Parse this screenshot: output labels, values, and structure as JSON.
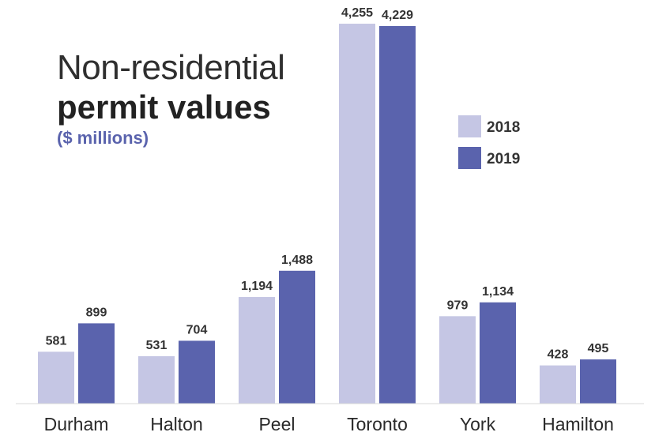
{
  "chart_data": {
    "type": "bar",
    "title_line1": "Non-residential",
    "title_line2": "permit values",
    "subtitle": "($ millions)",
    "categories": [
      "Durham",
      "Halton",
      "Peel",
      "Toronto",
      "York",
      "Hamilton"
    ],
    "series": [
      {
        "name": "2018",
        "color": "#c5c6e4",
        "values": [
          581,
          531,
          1194,
          4255,
          979,
          428
        ],
        "labels": [
          "581",
          "531",
          "1,194",
          "4,255",
          "979",
          "428"
        ]
      },
      {
        "name": "2019",
        "color": "#5a63ad",
        "values": [
          899,
          704,
          1488,
          4229,
          1134,
          495
        ],
        "labels": [
          "899",
          "704",
          "1,488",
          "4,229",
          "1,134",
          "495"
        ]
      }
    ],
    "ylim": [
      0,
      4255
    ],
    "grid": false,
    "legend_position": "right"
  }
}
